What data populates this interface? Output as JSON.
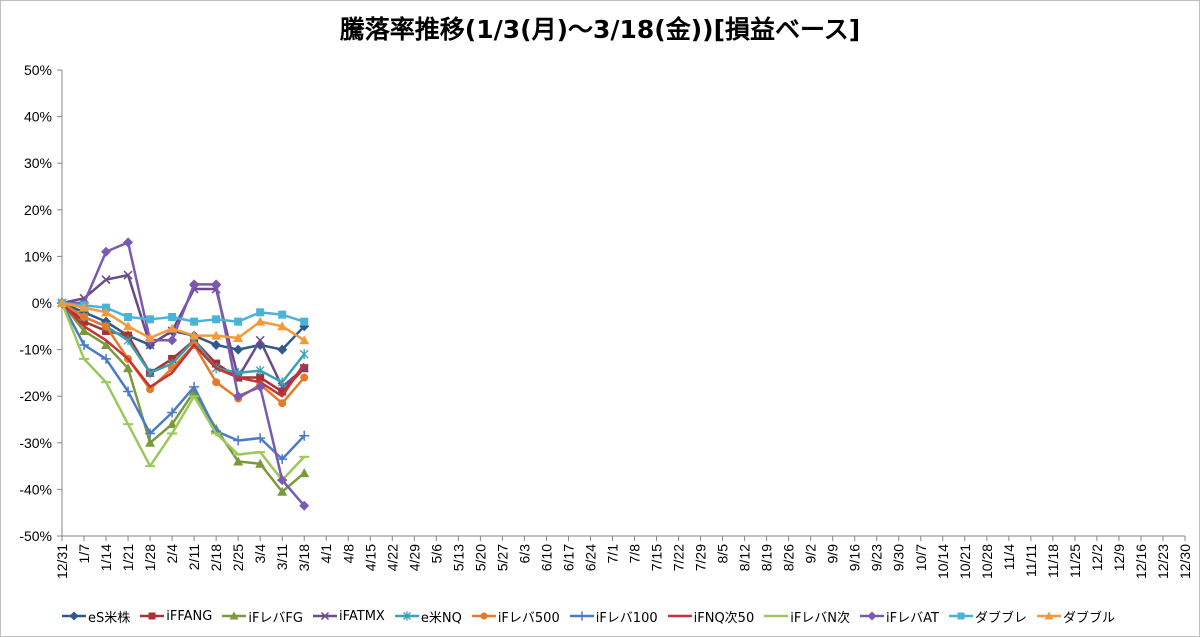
{
  "chart_data": {
    "type": "line",
    "title": "騰落率推移(1/3(月)～3/18(金))[損益ベース]",
    "y_ticks": [
      "50%",
      "40%",
      "30%",
      "20%",
      "10%",
      "0%",
      "-10%",
      "-20%",
      "-30%",
      "-40%",
      "-50%"
    ],
    "ylim": [
      -50,
      50
    ],
    "x_ticks": [
      "12/31",
      "1/7",
      "1/14",
      "1/21",
      "1/28",
      "2/4",
      "2/11",
      "2/18",
      "2/25",
      "3/4",
      "3/11",
      "3/18",
      "4/1",
      "4/8",
      "4/15",
      "4/22",
      "4/29",
      "5/6",
      "5/13",
      "5/20",
      "5/27",
      "6/3",
      "6/10",
      "6/17",
      "6/24",
      "7/1",
      "7/8",
      "7/15",
      "7/22",
      "7/29",
      "8/5",
      "8/12",
      "8/19",
      "8/26",
      "9/2",
      "9/9",
      "9/16",
      "9/23",
      "9/30",
      "10/7",
      "10/14",
      "10/21",
      "10/28",
      "11/4",
      "11/11",
      "11/18",
      "11/25",
      "12/2",
      "12/9",
      "12/16",
      "12/23",
      "12/30"
    ],
    "x": [
      "12/31",
      "1/7",
      "1/14",
      "1/21",
      "1/28",
      "2/4",
      "2/11",
      "2/18",
      "2/25",
      "3/4",
      "3/11",
      "3/18"
    ],
    "series": [
      {
        "name": "eS米株",
        "color": "#2e5a8e",
        "marker": "diamond",
        "values": [
          0,
          -2,
          -4,
          -7,
          -9,
          -6,
          -7,
          -9,
          -10,
          -9,
          -10,
          -5
        ]
      },
      {
        "name": "iFFANG",
        "color": "#a83232",
        "marker": "square",
        "values": [
          0,
          -4,
          -6,
          -7,
          -15,
          -12,
          -8,
          -13,
          -16,
          -16,
          -19,
          -14
        ]
      },
      {
        "name": "iFレバFG",
        "color": "#7a9a3a",
        "marker": "triangle",
        "values": [
          0,
          -6,
          -9,
          -14,
          -30,
          -26,
          -19,
          -27,
          -34,
          -34.5,
          -40.5,
          -36.5
        ]
      },
      {
        "name": "iFATMX",
        "color": "#6a4a8a",
        "marker": "x",
        "values": [
          0,
          1,
          5,
          6,
          -9,
          -6,
          3,
          3,
          -16,
          -8,
          -18,
          -14
        ]
      },
      {
        "name": "e米NQ",
        "color": "#3aa0b4",
        "marker": "asterisk",
        "values": [
          0,
          -3,
          -5,
          -8,
          -15,
          -13,
          -8,
          -14,
          -15,
          -14.5,
          -17,
          -11
        ]
      },
      {
        "name": "iFレバ500",
        "color": "#e57a2a",
        "marker": "circle",
        "values": [
          0,
          -3,
          -5,
          -12,
          -18.5,
          -14,
          -9,
          -17,
          -20.5,
          -17.5,
          -21.5,
          -16
        ]
      },
      {
        "name": "iFレバ100",
        "color": "#4a7ac8",
        "marker": "plus",
        "values": [
          0,
          -9,
          -12,
          -19,
          -28,
          -23.5,
          -18,
          -27.5,
          -29.5,
          -29,
          -33.5,
          -28.5
        ]
      },
      {
        "name": "iFNQ次50",
        "color": "#c83232",
        "marker": "none",
        "values": [
          0,
          -5,
          -8,
          -12,
          -18,
          -15,
          -9,
          -14,
          -16,
          -17,
          -20,
          -13
        ]
      },
      {
        "name": "iFレバN次",
        "color": "#9ac85a",
        "marker": "dash",
        "values": [
          0,
          -12,
          -17,
          -26,
          -35,
          -28,
          -20,
          -28,
          -32.5,
          -32,
          -38,
          -33
        ]
      },
      {
        "name": "iFレバAT",
        "color": "#7a5ab0",
        "marker": "diamond",
        "values": [
          0,
          0,
          11,
          13,
          -8,
          -8,
          4,
          4,
          -20,
          -18,
          -38,
          -43.5
        ]
      },
      {
        "name": "ダブブレ",
        "color": "#4ab4d8",
        "marker": "square",
        "values": [
          0,
          -0.5,
          -1,
          -3,
          -3.5,
          -3,
          -4,
          -3.5,
          -4,
          -2,
          -2.5,
          -4
        ]
      },
      {
        "name": "ダブブル",
        "color": "#f49a3a",
        "marker": "triangle",
        "values": [
          0,
          -1,
          -2,
          -5,
          -7.5,
          -5.5,
          -7,
          -7,
          -7.5,
          -4,
          -5,
          -8
        ]
      }
    ]
  }
}
